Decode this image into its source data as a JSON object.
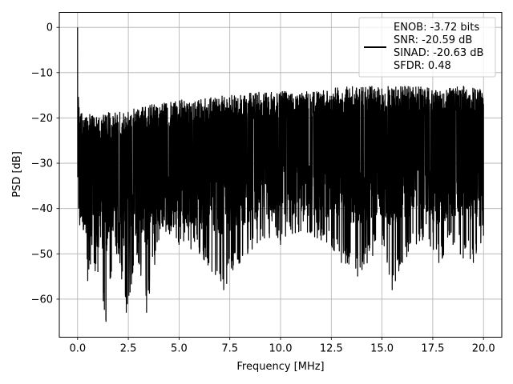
{
  "chart_data": {
    "type": "line",
    "title": "",
    "xlabel": "Frequency [MHz]",
    "ylabel": "PSD [dB]",
    "xlim": [
      -0.9,
      20.9
    ],
    "ylim": [
      -68.4,
      3.3
    ],
    "x_ticks": [
      0.0,
      2.5,
      5.0,
      7.5,
      10.0,
      12.5,
      15.0,
      17.5,
      20.0
    ],
    "x_tick_labels": [
      "0.0",
      "2.5",
      "5.0",
      "7.5",
      "10.0",
      "12.5",
      "15.0",
      "17.5",
      "20.0"
    ],
    "y_ticks": [
      0,
      -10,
      -20,
      -30,
      -40,
      -50,
      -60
    ],
    "y_tick_labels": [
      "0",
      "−10",
      "−20",
      "−30",
      "−40",
      "−50",
      "−60"
    ],
    "grid": true,
    "legend_position": "top-right",
    "series": [
      {
        "name": "ENOB: -3.72 bits\nSNR: -20.59 dB\nSINAD: -20.63 dB\nSFDR: 0.48",
        "legend_lines": [
          "ENOB: -3.72 bits",
          "SNR: -20.59 dB",
          "SINAD: -20.63 dB",
          "SFDR: 0.48"
        ],
        "color": "#000000",
        "description_points": {
          "x": [
            0.0,
            0.05,
            0.1,
            0.3,
            0.5,
            1.0,
            1.4,
            2.0,
            2.4,
            3.0,
            3.4,
            4.0,
            5.0,
            6.0,
            7.2,
            8.0,
            9.0,
            10.0,
            11.0,
            12.0,
            13.0,
            13.8,
            15.0,
            15.5,
            16.0,
            17.0,
            17.8,
            18.5,
            19.0,
            19.5,
            20.0
          ],
          "upper": [
            0.0,
            -16,
            -18,
            -19,
            -19,
            -20,
            -19,
            -18,
            -18,
            -18,
            -17,
            -17,
            -16,
            -16,
            -15,
            -15,
            -14,
            -14,
            -14,
            -14,
            -13,
            -13,
            -13,
            -13,
            -13,
            -13,
            -14,
            -13,
            -13,
            -13,
            -14
          ],
          "lower": [
            -33,
            -40,
            -42,
            -44,
            -56,
            -54,
            -65,
            -50,
            -63,
            -52,
            -63,
            -47,
            -48,
            -50,
            -58,
            -52,
            -47,
            -48,
            -45,
            -47,
            -52,
            -55,
            -48,
            -58,
            -52,
            -47,
            -52,
            -48,
            -51,
            -52,
            -46
          ]
        }
      }
    ]
  }
}
